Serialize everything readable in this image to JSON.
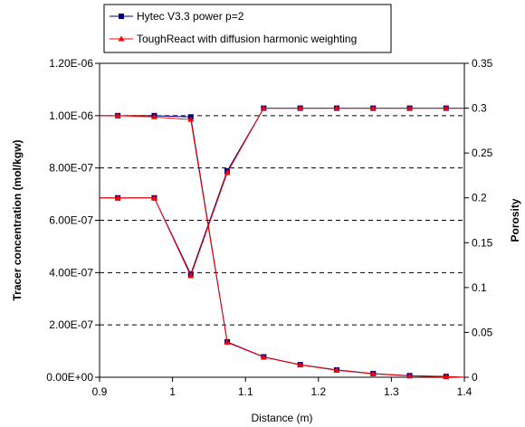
{
  "chart_data": {
    "type": "line",
    "xlabel": "Distance (m)",
    "ylabel_left": "Tracer concentration (mol/kgw)",
    "ylabel_right": "Porosity",
    "xlim": [
      0.9,
      1.4
    ],
    "ylim_left": [
      0,
      1.2e-06
    ],
    "ylim_right": [
      0,
      0.35
    ],
    "x_ticks": [
      "0.9",
      "1",
      "1.1",
      "1.2",
      "1.3",
      "1.4"
    ],
    "y_left_ticks": [
      "0.00E+00",
      "2.00E-07",
      "4.00E-07",
      "6.00E-07",
      "8.00E-07",
      "1.00E-06",
      "1.20E-06"
    ],
    "y_right_ticks": [
      "0",
      "0.05",
      "0.1",
      "0.15",
      "0.2",
      "0.25",
      "0.3",
      "0.35"
    ],
    "grid": "horizontal dashed",
    "legend_position": "top-center",
    "series": [
      {
        "name": "Hytec V3.3 power p=2",
        "color": "#000080",
        "marker": "square",
        "groups": [
          {
            "axis": "left",
            "x": [
              0.9,
              0.925,
              0.975,
              1.025,
              1.075,
              1.125,
              1.175,
              1.225,
              1.275,
              1.325,
              1.375,
              1.4
            ],
            "y": [
              1e-06,
              1e-06,
              1e-06,
              9.95e-07,
              1.35e-07,
              7.8e-08,
              4.8e-08,
              2.8e-08,
              1.4e-08,
              6e-09,
              3e-09,
              0
            ]
          },
          {
            "axis": "right",
            "x": [
              0.9,
              0.925,
              0.975,
              1.025,
              1.075,
              1.125,
              1.175,
              1.225,
              1.275,
              1.325,
              1.375,
              1.4
            ],
            "y": [
              0.2,
              0.2,
              0.2,
              0.115,
              0.23,
              0.3,
              0.3,
              0.3,
              0.3,
              0.3,
              0.3,
              0.3
            ]
          }
        ]
      },
      {
        "name": "ToughReact with diffusion harmonic weighting",
        "color": "#ff0000",
        "marker": "triangle",
        "groups": [
          {
            "axis": "left",
            "x": [
              0.9,
              0.925,
              0.975,
              1.025,
              1.075,
              1.125,
              1.175,
              1.225,
              1.275,
              1.325,
              1.375,
              1.4
            ],
            "y": [
              1e-06,
              1e-06,
              9.95e-07,
              9.85e-07,
              1.33e-07,
              7.7e-08,
              4.7e-08,
              2.7e-08,
              1.3e-08,
              5e-09,
              2e-09,
              0
            ]
          },
          {
            "axis": "right",
            "x": [
              0.9,
              0.925,
              0.975,
              1.025,
              1.075,
              1.125,
              1.175,
              1.225,
              1.275,
              1.325,
              1.375,
              1.4
            ],
            "y": [
              0.2,
              0.2,
              0.2,
              0.113,
              0.228,
              0.3,
              0.3,
              0.3,
              0.3,
              0.3,
              0.3,
              0.3
            ]
          }
        ]
      }
    ]
  }
}
